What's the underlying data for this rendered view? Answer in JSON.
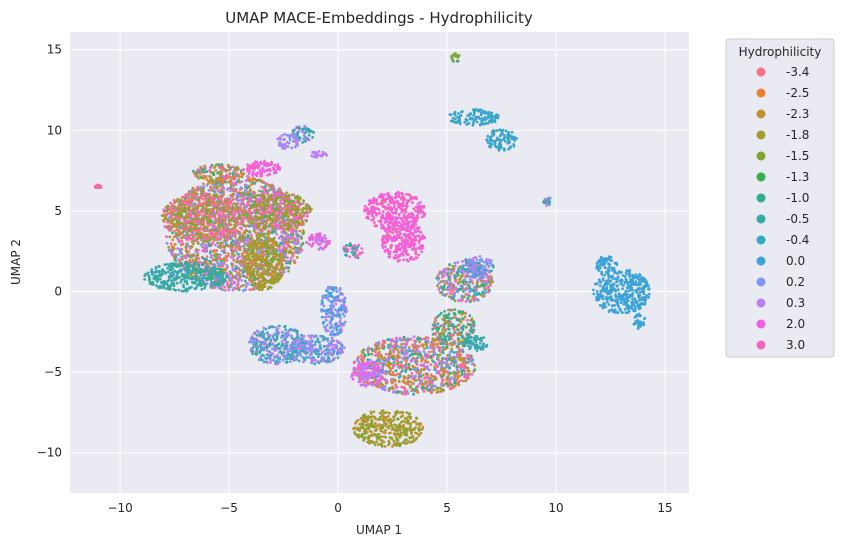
{
  "chart_data": {
    "type": "scatter",
    "title": "UMAP MACE-Embeddings - Hydrophilicity",
    "xlabel": "UMAP 1",
    "ylabel": "UMAP 2",
    "xlim": [
      -12.3,
      16.1
    ],
    "ylim": [
      -12.5,
      16.1
    ],
    "xticks": [
      -10,
      -5,
      0,
      5,
      10,
      15
    ],
    "yticks": [
      -10,
      -5,
      0,
      5,
      10,
      15
    ],
    "xtick_labels": [
      "−10",
      "−5",
      "0",
      "5",
      "10",
      "15"
    ],
    "ytick_labels": [
      "−10",
      "−5",
      "0",
      "5",
      "10",
      "15"
    ],
    "grid": true,
    "legend": {
      "title": "Hydrophilicity",
      "placement": "outside-right",
      "entries": [
        {
          "label": "-3.4",
          "color": "#f77189"
        },
        {
          "label": "-2.5",
          "color": "#e5812f"
        },
        {
          "label": "-2.3",
          "color": "#c39132"
        },
        {
          "label": "-1.8",
          "color": "#a49c31"
        },
        {
          "label": "-1.5",
          "color": "#80a531"
        },
        {
          "label": "-1.3",
          "color": "#33b04a"
        },
        {
          "label": "-1.0",
          "color": "#35ac8a"
        },
        {
          "label": "-0.5",
          "color": "#37aaa3"
        },
        {
          "label": "-0.4",
          "color": "#38a8bb"
        },
        {
          "label": "0.0",
          "color": "#3ba3d8"
        },
        {
          "label": "0.2",
          "color": "#8196f4"
        },
        {
          "label": "0.3",
          "color": "#bb7ef4"
        },
        {
          "label": "2.0",
          "color": "#f25ee6"
        },
        {
          "label": "3.0",
          "color": "#f565bd"
        }
      ]
    },
    "clusters": [
      {
        "cx": -4.7,
        "cy": 3.6,
        "rx": 3.2,
        "ry": 3.6,
        "mix": [
          0,
          3,
          13,
          7,
          1,
          4,
          10,
          11
        ]
      },
      {
        "cx": -6.2,
        "cy": 4.6,
        "rx": 1.9,
        "ry": 1.5,
        "mix": [
          3,
          4,
          13,
          0
        ]
      },
      {
        "cx": -2.8,
        "cy": 5.0,
        "rx": 1.6,
        "ry": 1.2,
        "mix": [
          3,
          4,
          13
        ]
      },
      {
        "cx": -5.5,
        "cy": 7.3,
        "rx": 1.2,
        "ry": 0.6,
        "mix": [
          13,
          1,
          6,
          3
        ]
      },
      {
        "cx": -3.5,
        "cy": 7.6,
        "rx": 0.9,
        "ry": 0.5,
        "mix": [
          12,
          13
        ]
      },
      {
        "cx": -7.0,
        "cy": 0.9,
        "rx": 1.9,
        "ry": 0.9,
        "mix": [
          7,
          6,
          8
        ]
      },
      {
        "cx": -3.4,
        "cy": 1.8,
        "rx": 0.9,
        "ry": 1.8,
        "mix": [
          3,
          4,
          2
        ]
      },
      {
        "cx": -2.8,
        "cy": -3.3,
        "rx": 1.3,
        "ry": 1.2,
        "mix": [
          11,
          10,
          8,
          7
        ]
      },
      {
        "cx": -1.1,
        "cy": -3.6,
        "rx": 1.4,
        "ry": 0.9,
        "mix": [
          11,
          10,
          8
        ]
      },
      {
        "cx": -0.2,
        "cy": -1.2,
        "rx": 0.6,
        "ry": 1.6,
        "mix": [
          9,
          10,
          11
        ]
      },
      {
        "cx": -0.9,
        "cy": 3.1,
        "rx": 0.6,
        "ry": 0.5,
        "mix": [
          13,
          11,
          12
        ]
      },
      {
        "cx": 0.7,
        "cy": 2.5,
        "rx": 0.5,
        "ry": 0.5,
        "mix": [
          13,
          7
        ]
      },
      {
        "cx": -1.6,
        "cy": 9.8,
        "rx": 0.5,
        "ry": 0.6,
        "mix": [
          7,
          8,
          11
        ]
      },
      {
        "cx": -2.3,
        "cy": 9.3,
        "rx": 0.5,
        "ry": 0.5,
        "mix": [
          11,
          10
        ]
      },
      {
        "cx": -0.9,
        "cy": 8.5,
        "rx": 0.4,
        "ry": 0.2,
        "mix": [
          11
        ]
      },
      {
        "cx": 2.6,
        "cy": 5.0,
        "rx": 1.4,
        "ry": 1.2,
        "mix": [
          13,
          12
        ]
      },
      {
        "cx": 3.0,
        "cy": 3.1,
        "rx": 1.0,
        "ry": 1.3,
        "mix": [
          13,
          12
        ]
      },
      {
        "cx": 3.5,
        "cy": -4.6,
        "rx": 2.8,
        "ry": 1.8,
        "mix": [
          0,
          1,
          2,
          3,
          6,
          8,
          10,
          11,
          13
        ]
      },
      {
        "cx": 5.3,
        "cy": -2.3,
        "rx": 1.0,
        "ry": 1.2,
        "mix": [
          7,
          6,
          0,
          3
        ]
      },
      {
        "cx": 6.3,
        "cy": -3.2,
        "rx": 0.6,
        "ry": 0.5,
        "mix": [
          7,
          8
        ]
      },
      {
        "cx": 5.8,
        "cy": 0.6,
        "rx": 1.3,
        "ry": 1.3,
        "mix": [
          3,
          0,
          6,
          8,
          10,
          11
        ]
      },
      {
        "cx": 6.4,
        "cy": 1.5,
        "rx": 0.8,
        "ry": 0.7,
        "mix": [
          8,
          10,
          11
        ]
      },
      {
        "cx": 1.4,
        "cy": -5.1,
        "rx": 0.8,
        "ry": 0.8,
        "mix": [
          12,
          11
        ]
      },
      {
        "cx": 2.3,
        "cy": -8.5,
        "rx": 1.6,
        "ry": 1.2,
        "mix": [
          3,
          4,
          2
        ]
      },
      {
        "cx": 6.2,
        "cy": 10.8,
        "rx": 1.2,
        "ry": 0.5,
        "mix": [
          9,
          8
        ]
      },
      {
        "cx": 7.5,
        "cy": 9.4,
        "rx": 0.7,
        "ry": 0.7,
        "mix": [
          9,
          8
        ]
      },
      {
        "cx": 5.4,
        "cy": 14.5,
        "rx": 0.2,
        "ry": 0.3,
        "mix": [
          4,
          6
        ]
      },
      {
        "cx": 13.0,
        "cy": 0.0,
        "rx": 1.3,
        "ry": 1.4,
        "mix": [
          9
        ]
      },
      {
        "cx": 12.3,
        "cy": 1.6,
        "rx": 0.5,
        "ry": 0.6,
        "mix": [
          9
        ]
      },
      {
        "cx": 13.8,
        "cy": -1.8,
        "rx": 0.3,
        "ry": 0.5,
        "mix": [
          9
        ]
      },
      {
        "cx": -11.0,
        "cy": 6.5,
        "rx": 0.15,
        "ry": 0.1,
        "mix": [
          0,
          13
        ]
      },
      {
        "cx": 9.6,
        "cy": 5.6,
        "rx": 0.2,
        "ry": 0.3,
        "mix": [
          11,
          7
        ]
      }
    ]
  }
}
